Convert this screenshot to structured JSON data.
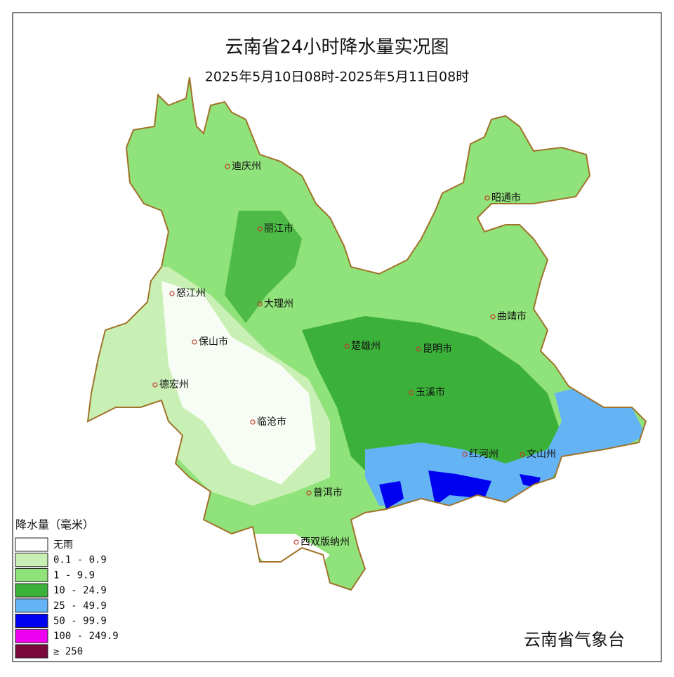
{
  "header": {
    "title": "云南省24小时降水量实况图",
    "subtitle": "2025年5月10日08时-2025年5月11日08时"
  },
  "cities": [
    "迪庆州",
    "丽江市",
    "昭通市",
    "怒江州",
    "大理州",
    "曲靖市",
    "保山市",
    "楚雄州",
    "昆明市",
    "德宏州",
    "玉溪市",
    "临沧市",
    "红河州",
    "文山州",
    "普洱市",
    "西双版纳州"
  ],
  "legend": {
    "title": "降水量（毫米）",
    "items": [
      {
        "label": "无雨",
        "color": "#ffffff"
      },
      {
        "label": "0.1 - 0.9",
        "color": "#c8f0b4"
      },
      {
        "label": "1 -  9.9",
        "color": "#90e27a"
      },
      {
        "label": "10 - 24.9",
        "color": "#3cb13a"
      },
      {
        "label": "25 - 49.9",
        "color": "#64b4f5"
      },
      {
        "label": "50 - 99.9",
        "color": "#0000f0"
      },
      {
        "label": "100 - 249.9",
        "color": "#f000f0"
      },
      {
        "label": "≥ 250",
        "color": "#7a0a3c"
      }
    ]
  },
  "footer": {
    "source": "云南省气象台"
  }
}
